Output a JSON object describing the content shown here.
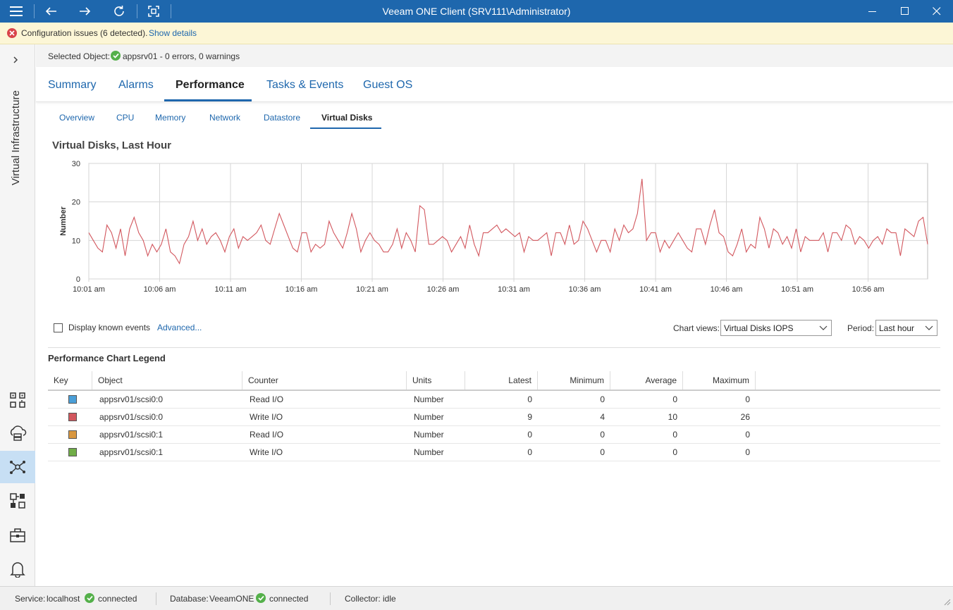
{
  "window": {
    "title": "Veeam ONE Client (SRV111\\Administrator)"
  },
  "warning": {
    "text": "Configuration issues (6 detected).",
    "link": "Show details"
  },
  "nav": {
    "section_label": "Virtual Infrastructure",
    "icons": [
      "infrastructure-view-icon",
      "cloud-infrastructure-icon",
      "business-view-icon",
      "data-protection-icon",
      "workspace-icon",
      "alarms-icon"
    ]
  },
  "selected": {
    "label": "Selected Object:",
    "value": "appsrv01 - 0 errors, 0 warnings"
  },
  "main_tabs": [
    "Summary",
    "Alarms",
    "Performance",
    "Tasks & Events",
    "Guest OS"
  ],
  "sub_tabs": [
    "Overview",
    "CPU",
    "Memory",
    "Network",
    "Datastore",
    "Virtual Disks"
  ],
  "chart_title": "Virtual Disks, Last Hour",
  "chart_data": {
    "type": "line",
    "title": "Virtual Disks, Last Hour",
    "ylabel": "Number",
    "xlabel": "",
    "ylim": [
      0,
      30
    ],
    "yticks": [
      0,
      10,
      20,
      30
    ],
    "xticks": [
      "10:01 am",
      "10:06 am",
      "10:11 am",
      "10:16 am",
      "10:21 am",
      "10:26 am",
      "10:31 am",
      "10:36 am",
      "10:41 am",
      "10:46 am",
      "10:51 am",
      "10:56 am"
    ],
    "x_start_minute": 0,
    "x_end_minute": 59.2,
    "grid": true,
    "series": [
      {
        "name": "Write I/O",
        "color": "#d2575e",
        "values": [
          12,
          10,
          8,
          7,
          14,
          12,
          8,
          13,
          6,
          13,
          16,
          12,
          10,
          6,
          9,
          7,
          9,
          13,
          7,
          6,
          4,
          9,
          11,
          15,
          10,
          13,
          9,
          11,
          12,
          10,
          7,
          11,
          13,
          8,
          11,
          10,
          11,
          12,
          14,
          10,
          9,
          13,
          17,
          14,
          11,
          8,
          7,
          12,
          12,
          7,
          9,
          8,
          9,
          15,
          12,
          10,
          8,
          12,
          17,
          13,
          7,
          10,
          12,
          10,
          9,
          7,
          7,
          9,
          13,
          8,
          12,
          10,
          7,
          19,
          18,
          9,
          9,
          10,
          11,
          10,
          7,
          9,
          11,
          8,
          14,
          9,
          6,
          12,
          12,
          13,
          14,
          12,
          13,
          12,
          11,
          12,
          7,
          11,
          10,
          10,
          11,
          12,
          6,
          12,
          12,
          9,
          14,
          9,
          10,
          15,
          13,
          10,
          7,
          10,
          10,
          7,
          13,
          10,
          14,
          12,
          13,
          17,
          26,
          10,
          12,
          12,
          7,
          10,
          8,
          10,
          12,
          10,
          8,
          7,
          13,
          13,
          9,
          14,
          18,
          12,
          11,
          7,
          6,
          9,
          13,
          7,
          9,
          8,
          16,
          13,
          8,
          13,
          12,
          9,
          11,
          8,
          13,
          7,
          11,
          10,
          10,
          10,
          12,
          7,
          12,
          12,
          10,
          14,
          13,
          9,
          11,
          10,
          8,
          10,
          11,
          9,
          13,
          12,
          12,
          6,
          13,
          12,
          11,
          15,
          16,
          9
        ]
      }
    ]
  },
  "controls": {
    "display_events": "Display known events",
    "advanced": "Advanced...",
    "chart_views_label": "Chart views:",
    "chart_views_value": "Virtual Disks IOPS",
    "period_label": "Period:",
    "period_value": "Last hour"
  },
  "legend": {
    "title": "Performance Chart Legend",
    "headers": [
      "Key",
      "Object",
      "Counter",
      "Units",
      "Latest",
      "Minimum",
      "Average",
      "Maximum"
    ],
    "rows": [
      {
        "color": "#4a9fd8",
        "object": "appsrv01/scsi0:0",
        "counter": "Read I/O",
        "units": "Number",
        "latest": "0",
        "minimum": "0",
        "average": "0",
        "maximum": "0"
      },
      {
        "color": "#d2575e",
        "object": "appsrv01/scsi0:0",
        "counter": "Write I/O",
        "units": "Number",
        "latest": "9",
        "minimum": "4",
        "average": "10",
        "maximum": "26"
      },
      {
        "color": "#d9973f",
        "object": "appsrv01/scsi0:1",
        "counter": "Read I/O",
        "units": "Number",
        "latest": "0",
        "minimum": "0",
        "average": "0",
        "maximum": "0"
      },
      {
        "color": "#70ad47",
        "object": "appsrv01/scsi0:1",
        "counter": "Write I/O",
        "units": "Number",
        "latest": "0",
        "minimum": "0",
        "average": "0",
        "maximum": "0"
      }
    ]
  },
  "status": {
    "service_label": "Service:",
    "service_value": "localhost",
    "service_state": "connected",
    "db_label": "Database:",
    "db_value": "VeeamONE",
    "db_state": "connected",
    "collector": "Collector: idle"
  }
}
